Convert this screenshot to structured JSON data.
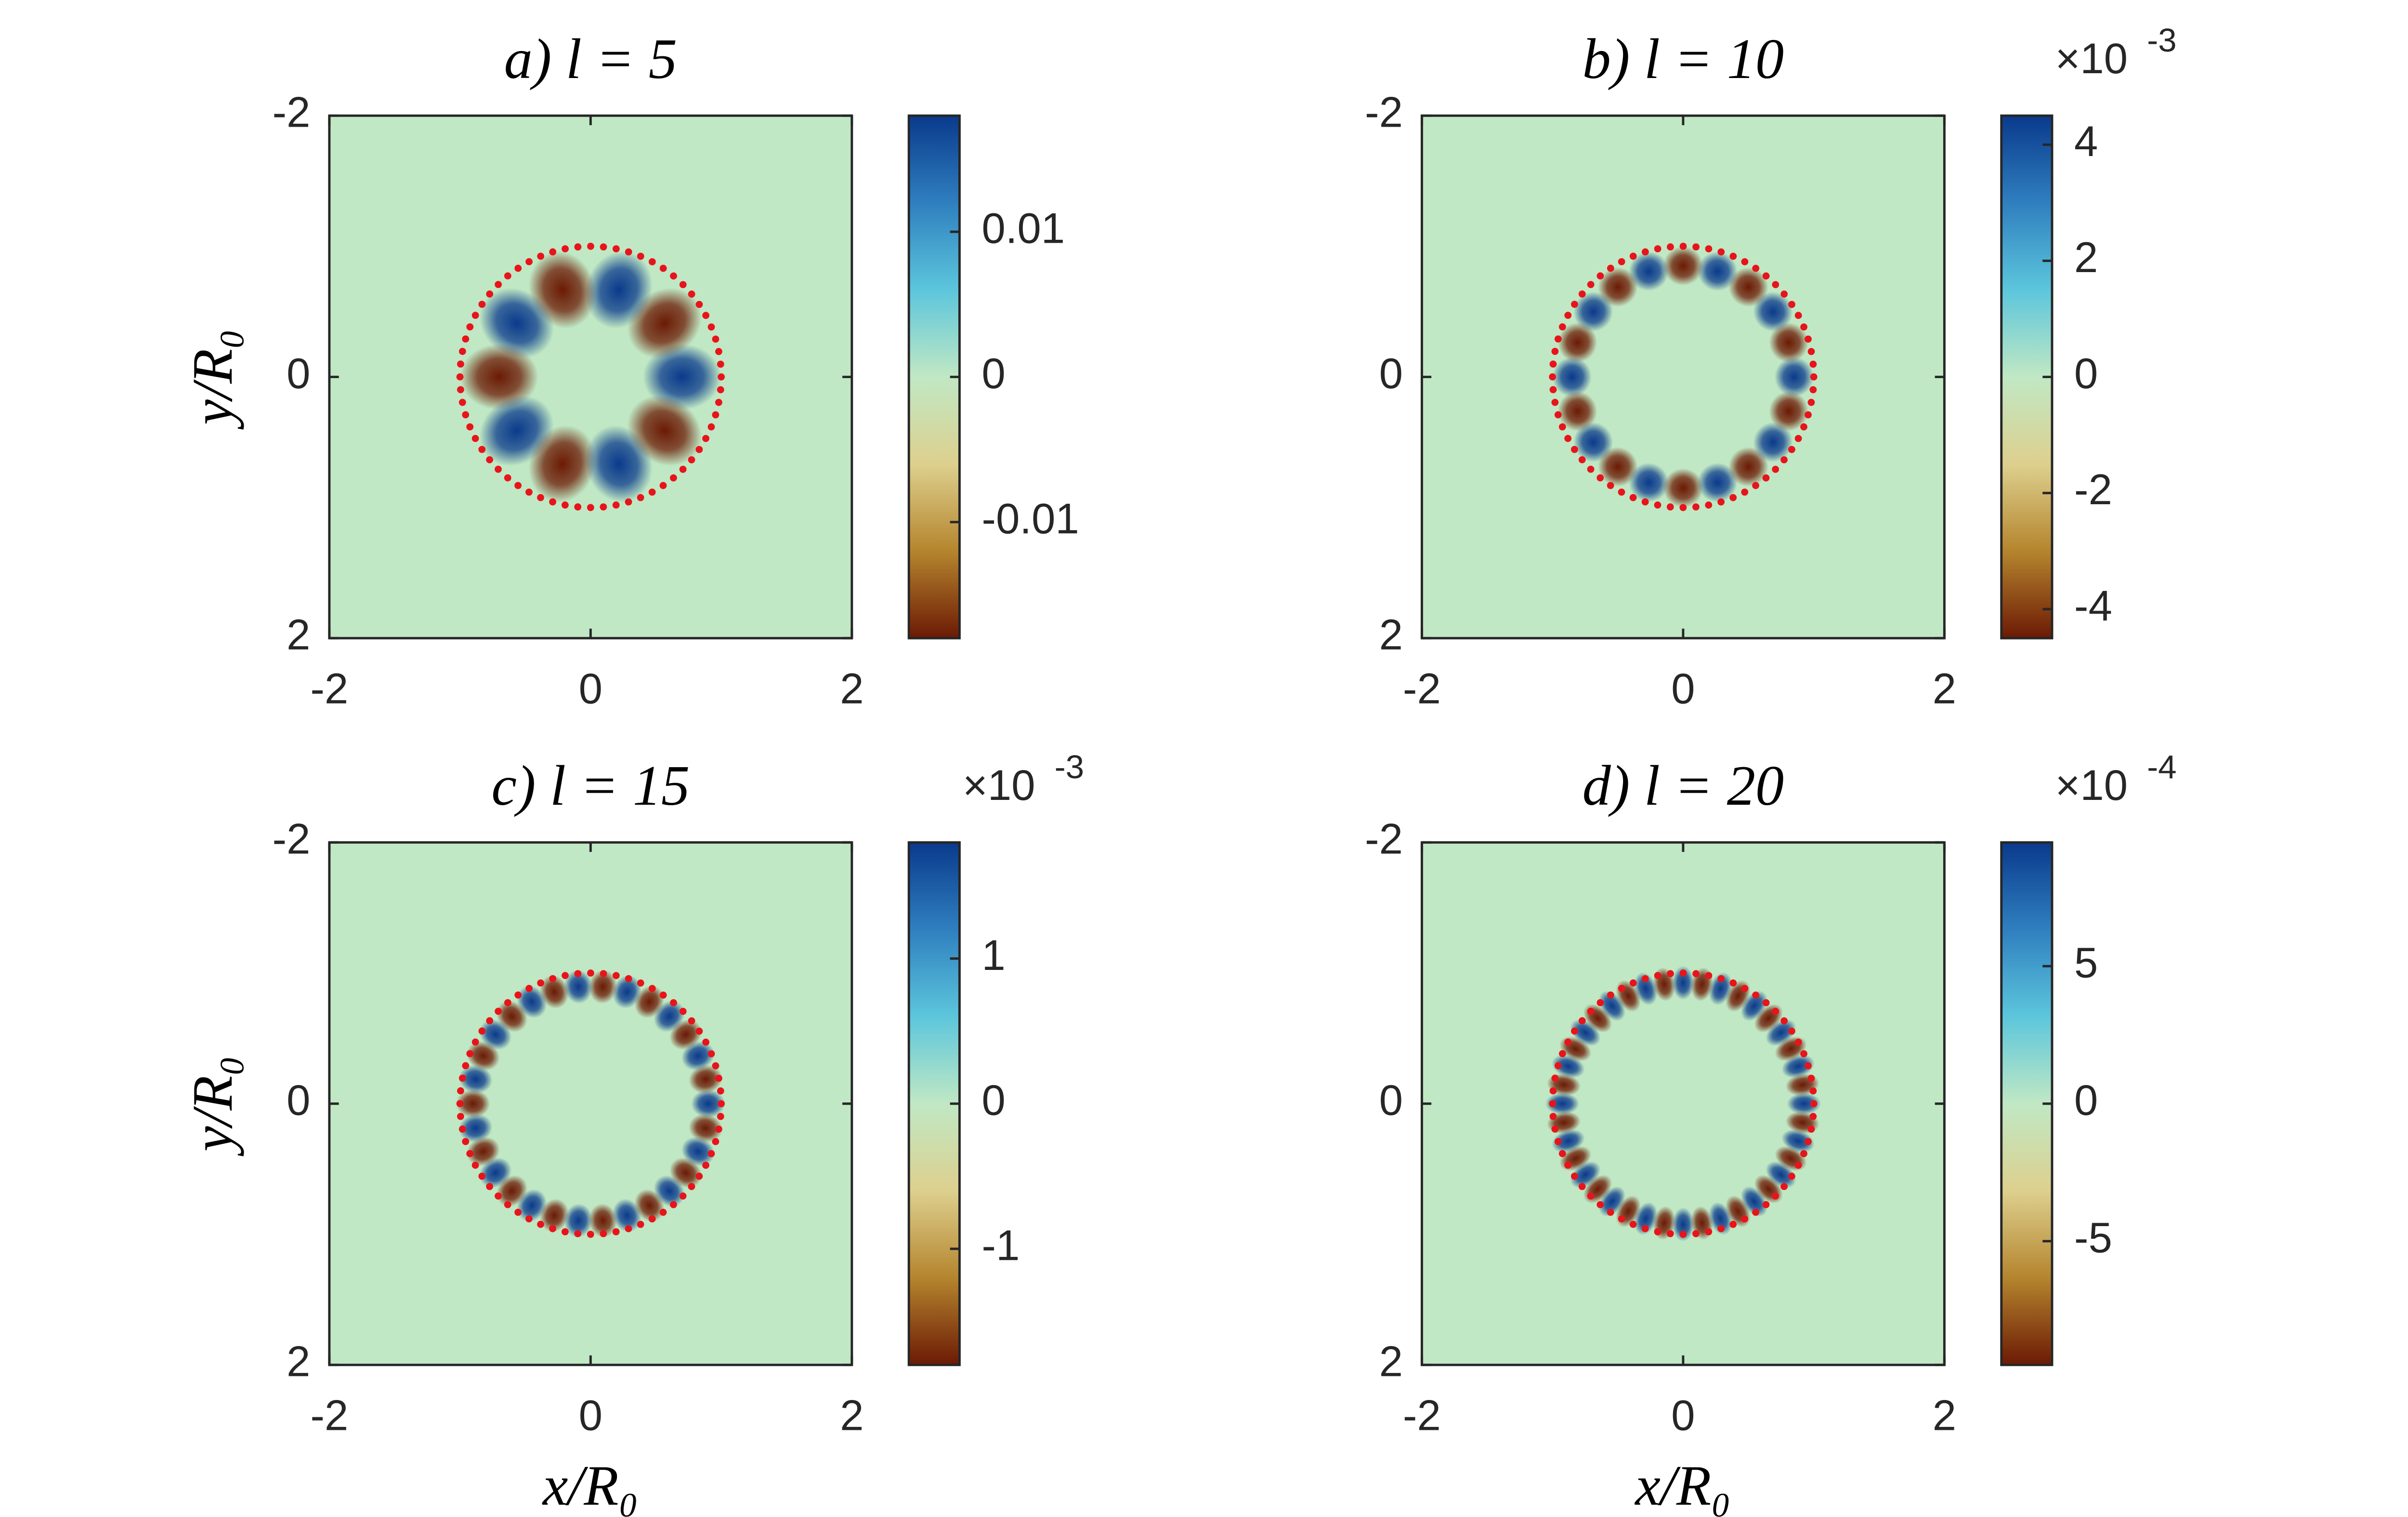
{
  "chart_data": [
    {
      "type": "heatmap",
      "title": "a) l = 5",
      "l": 5,
      "xlim": [
        -2,
        2
      ],
      "ylim": [
        -2,
        2
      ],
      "xticks": [
        -2,
        0,
        2
      ],
      "yticks": [
        -2,
        0,
        2
      ],
      "ylabel": "y/R₀",
      "clim": [
        -0.018,
        0.018
      ],
      "cticks": [
        -0.01,
        0,
        0.01
      ],
      "colormap": [
        "#0a3a8c",
        "#2f7fbf",
        "#5cc6dc",
        "#c0e8c4",
        "#ddd08e",
        "#b5852e",
        "#6c1a04"
      ],
      "ring": {
        "radius": 1,
        "color": "#e8141b"
      }
    },
    {
      "type": "heatmap",
      "title": "b) l = 10",
      "l": 10,
      "xlim": [
        -2,
        2
      ],
      "ylim": [
        -2,
        2
      ],
      "xticks": [
        -2,
        0,
        2
      ],
      "yticks": [
        -2,
        0,
        2
      ],
      "clim": [
        -4.5,
        4.5
      ],
      "cticks": [
        -4,
        -2,
        0,
        2,
        4
      ],
      "colorbar_scale": {
        "base": "×10",
        "exponent": "-3"
      },
      "colormap": [
        "#0a3a8c",
        "#2f7fbf",
        "#5cc6dc",
        "#c0e8c4",
        "#ddd08e",
        "#b5852e",
        "#6c1a04"
      ],
      "ring": {
        "radius": 1,
        "color": "#e8141b"
      }
    },
    {
      "type": "heatmap",
      "title": "c) l = 15",
      "l": 15,
      "xlim": [
        -2,
        2
      ],
      "ylim": [
        -2,
        2
      ],
      "xticks": [
        -2,
        0,
        2
      ],
      "yticks": [
        -2,
        0,
        2
      ],
      "xlabel": "x/R₀",
      "ylabel": "y/R₀",
      "clim": [
        -1.8,
        1.8
      ],
      "cticks": [
        -1,
        0,
        1
      ],
      "colorbar_scale": {
        "base": "×10",
        "exponent": "-3"
      },
      "colormap": [
        "#0a3a8c",
        "#2f7fbf",
        "#5cc6dc",
        "#c0e8c4",
        "#ddd08e",
        "#b5852e",
        "#6c1a04"
      ],
      "ring": {
        "radius": 1,
        "color": "#e8141b"
      }
    },
    {
      "type": "heatmap",
      "title": "d) l = 20",
      "l": 20,
      "xlim": [
        -2,
        2
      ],
      "ylim": [
        -2,
        2
      ],
      "xticks": [
        -2,
        0,
        2
      ],
      "yticks": [
        -2,
        0,
        2
      ],
      "xlabel": "x/R₀",
      "clim": [
        -9.5,
        9.5
      ],
      "cticks": [
        -5,
        0,
        5
      ],
      "colorbar_scale": {
        "base": "×10",
        "exponent": "-4"
      },
      "colormap": [
        "#0a3a8c",
        "#2f7fbf",
        "#5cc6dc",
        "#c0e8c4",
        "#ddd08e",
        "#b5852e",
        "#6c1a04"
      ],
      "ring": {
        "radius": 1,
        "color": "#e8141b"
      }
    }
  ]
}
